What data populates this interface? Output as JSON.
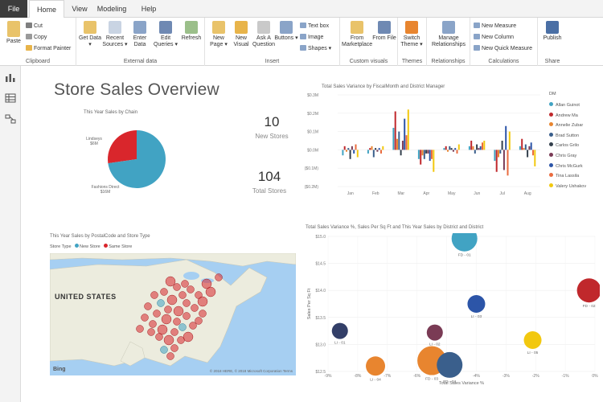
{
  "tabs": [
    "File",
    "Home",
    "View",
    "Modeling",
    "Help"
  ],
  "ribbon": {
    "clipboard": {
      "paste": "Paste",
      "cut": "Cut",
      "copy": "Copy",
      "format_painter": "Format Painter",
      "label": "Clipboard"
    },
    "external": {
      "get_data": "Get Data ▾",
      "recent_sources": "Recent Sources ▾",
      "enter_data": "Enter Data",
      "edit_queries": "Edit Queries ▾",
      "refresh": "Refresh",
      "label": "External data"
    },
    "insert": {
      "new_page": "New Page ▾",
      "new_visual": "New Visual",
      "ask_question": "Ask A Question",
      "buttons": "Buttons ▾",
      "text_box": "Text box",
      "image": "Image",
      "shapes": "Shapes ▾",
      "label": "Insert"
    },
    "custom": {
      "from_marketplace": "From Marketplace",
      "from_file": "From File",
      "label": "Custom visuals"
    },
    "themes": {
      "switch_theme": "Switch Theme ▾",
      "label": "Themes"
    },
    "relationships": {
      "manage": "Manage Relationships",
      "label": "Relationships"
    },
    "calculations": {
      "new_measure": "New Measure",
      "new_column": "New Column",
      "new_quick_measure": "New Quick Measure",
      "label": "Calculations"
    },
    "share": {
      "publish": "Publish",
      "label": "Share"
    }
  },
  "report": {
    "title": "Store Sales Overview",
    "cards": [
      {
        "value": "10",
        "label": "New Stores"
      },
      {
        "value": "104",
        "label": "Total Stores"
      }
    ],
    "map_title": "This Year Sales by PostalCode and Store Type",
    "map_legend": {
      "label": "Store Type",
      "new": "New Store",
      "same": "Same Store"
    },
    "map_country": "UNITED STATES",
    "map_copyright": "© 2018 HERE, © 2018 Microsoft Corporation  Terms",
    "map_brand": "Bing"
  },
  "colors": {
    "accent": "#f2c80f",
    "pbi_red": "#fd625e",
    "teal": "#01b8aa",
    "map_water": "#a6cff2"
  },
  "chart_data": [
    {
      "type": "pie",
      "title": "This Year Sales by Chain",
      "slices": [
        {
          "name": "Lindseys",
          "label": "$6M",
          "value": 6,
          "color": "#d9262c"
        },
        {
          "name": "Fashions Direct",
          "label": "$16M",
          "value": 16,
          "color": "#41a3c3"
        }
      ]
    },
    {
      "type": "bar",
      "title": "Total Sales Variance by FiscalMonth and District Manager",
      "categories": [
        "Jan",
        "Feb",
        "Mar",
        "Apr",
        "May",
        "Jun",
        "Jul",
        "Aug"
      ],
      "ylim": [
        -0.2,
        0.3
      ],
      "yticks": [
        "$0.3M",
        "$0.2M",
        "$0.1M",
        "$0.0M",
        "($0.1M)",
        "($0.2M)"
      ],
      "legend_title": "DM",
      "legend_position": "right",
      "series": [
        {
          "name": "Allan Guinot",
          "color": "#41a3c3",
          "values": [
            -0.03,
            -0.02,
            0.12,
            -0.05,
            0.01,
            0.02,
            -0.06,
            0.02
          ]
        },
        {
          "name": "Andrew Ma",
          "color": "#c0282c",
          "values": [
            0.02,
            0.01,
            0.21,
            -0.08,
            0.02,
            0.05,
            -0.12,
            0.06
          ]
        },
        {
          "name": "Annelie Zubar",
          "color": "#e8852f",
          "values": [
            -0.01,
            0.02,
            0.06,
            -0.03,
            -0.01,
            0.02,
            -0.04,
            0.01
          ]
        },
        {
          "name": "Brad Sutton",
          "color": "#3a5f8c",
          "values": [
            0.01,
            -0.04,
            0.1,
            -0.05,
            0.02,
            -0.02,
            -0.02,
            0.03
          ]
        },
        {
          "name": "Carlos Grilo",
          "color": "#333f4c",
          "values": [
            -0.05,
            0.01,
            -0.03,
            -0.02,
            0.01,
            0.03,
            0.05,
            -0.04
          ]
        },
        {
          "name": "Chris Gray",
          "color": "#7a3b55",
          "values": [
            0.02,
            -0.01,
            0.05,
            -0.02,
            -0.01,
            0.01,
            -0.11,
            0.02
          ]
        },
        {
          "name": "Chris McGurk",
          "color": "#2c55a8",
          "values": [
            -0.02,
            0.01,
            0.17,
            -0.06,
            0.01,
            0.02,
            0.13,
            0.04
          ]
        },
        {
          "name": "Tina Lassila",
          "color": "#ea6c3f",
          "values": [
            0.03,
            -0.02,
            0.08,
            -0.05,
            -0.02,
            0.04,
            -0.14,
            -0.03
          ]
        },
        {
          "name": "Valery Ushakov",
          "color": "#f2c80f",
          "values": [
            -0.04,
            0.02,
            0.22,
            -0.12,
            0.03,
            0.05,
            0.1,
            -0.09
          ]
        }
      ]
    },
    {
      "type": "scatter",
      "title": "Total Sales Variance %, Sales Per Sq Ft and This Year Sales by District and District",
      "xlabel": "Total Sales Variance %",
      "ylabel": "Sales Per Sq Ft",
      "xlim": [
        -9,
        0
      ],
      "ylim": [
        12.5,
        15
      ],
      "xticks": [
        "-9%",
        "-8%",
        "-7%",
        "-6%",
        "-5%",
        "-4%",
        "-3%",
        "-2%",
        "-1%",
        "0%"
      ],
      "yticks": [
        "$15.0",
        "$14.5",
        "$14.0",
        "$13.5",
        "$13.0",
        "$12.5"
      ],
      "points": [
        {
          "label": "FD - 01",
          "x": -4.4,
          "y": 14.96,
          "r": 16,
          "color": "#41a3c3"
        },
        {
          "label": "FD - 02",
          "x": -0.2,
          "y": 14.0,
          "r": 15,
          "color": "#c0282c"
        },
        {
          "label": "LI - 03",
          "x": -4.0,
          "y": 13.75,
          "r": 11,
          "color": "#2c55a8"
        },
        {
          "label": "LI - 01",
          "x": -8.6,
          "y": 13.25,
          "r": 10,
          "color": "#333f68"
        },
        {
          "label": "LI - 02",
          "x": -5.4,
          "y": 13.22,
          "r": 10,
          "color": "#7a3b55"
        },
        {
          "label": "LI - 05",
          "x": -2.1,
          "y": 13.08,
          "r": 11,
          "color": "#f2c80f"
        },
        {
          "label": "LI - 04",
          "x": -7.4,
          "y": 12.6,
          "r": 12,
          "color": "#e8852f"
        },
        {
          "label": "FD - 03",
          "x": -5.5,
          "y": 12.7,
          "r": 18,
          "color": "#e8852f"
        },
        {
          "label": "FD - 04",
          "x": -4.9,
          "y": 12.62,
          "r": 16,
          "color": "#3a5f8c"
        }
      ]
    }
  ]
}
